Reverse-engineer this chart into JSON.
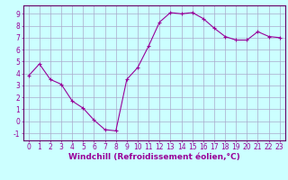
{
  "x": [
    0,
    1,
    2,
    3,
    4,
    5,
    6,
    7,
    8,
    9,
    10,
    11,
    12,
    13,
    14,
    15,
    16,
    17,
    18,
    19,
    20,
    21,
    22,
    23
  ],
  "y": [
    3.8,
    4.8,
    3.5,
    3.1,
    1.7,
    1.1,
    0.1,
    -0.7,
    -0.8,
    3.5,
    4.5,
    6.3,
    8.3,
    9.1,
    9.0,
    9.1,
    8.6,
    7.8,
    7.1,
    6.8,
    6.8,
    7.5,
    7.1,
    7.0
  ],
  "line_color": "#990099",
  "marker": "+",
  "marker_size": 3,
  "bg_color": "#ccffff",
  "grid_color": "#aaaacc",
  "xlabel": "Windchill (Refroidissement éolien,°C)",
  "xlabel_color": "#990099",
  "yticks": [
    -1,
    0,
    1,
    2,
    3,
    4,
    5,
    6,
    7,
    8,
    9
  ],
  "ylim": [
    -1.6,
    9.7
  ],
  "xlim": [
    -0.5,
    23.5
  ],
  "tick_fontsize": 5.5,
  "xlabel_fontsize": 6.5,
  "axes_color": "#990099",
  "spine_color": "#660066"
}
